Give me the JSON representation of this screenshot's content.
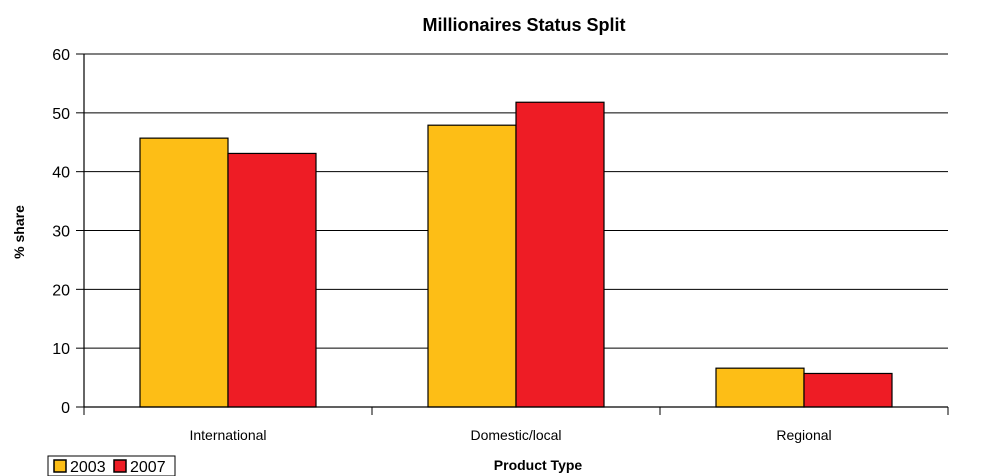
{
  "chart_data": {
    "type": "bar",
    "title": "Millionaires Status Split",
    "xlabel": "Product Type",
    "ylabel": "% share",
    "categories": [
      "International",
      "Domestic/local",
      "Regional"
    ],
    "series": [
      {
        "name": "2003",
        "values": [
          45.7,
          47.9,
          6.6
        ],
        "color": "#FDBE16"
      },
      {
        "name": "2007",
        "values": [
          43.1,
          51.8,
          5.7
        ],
        "color": "#EE1C25"
      }
    ],
    "ylim": [
      0,
      60
    ],
    "yticks": [
      "0",
      "10",
      "20",
      "30",
      "40",
      "50",
      "60"
    ],
    "grid": true,
    "legend_placement": "bottom-left"
  }
}
